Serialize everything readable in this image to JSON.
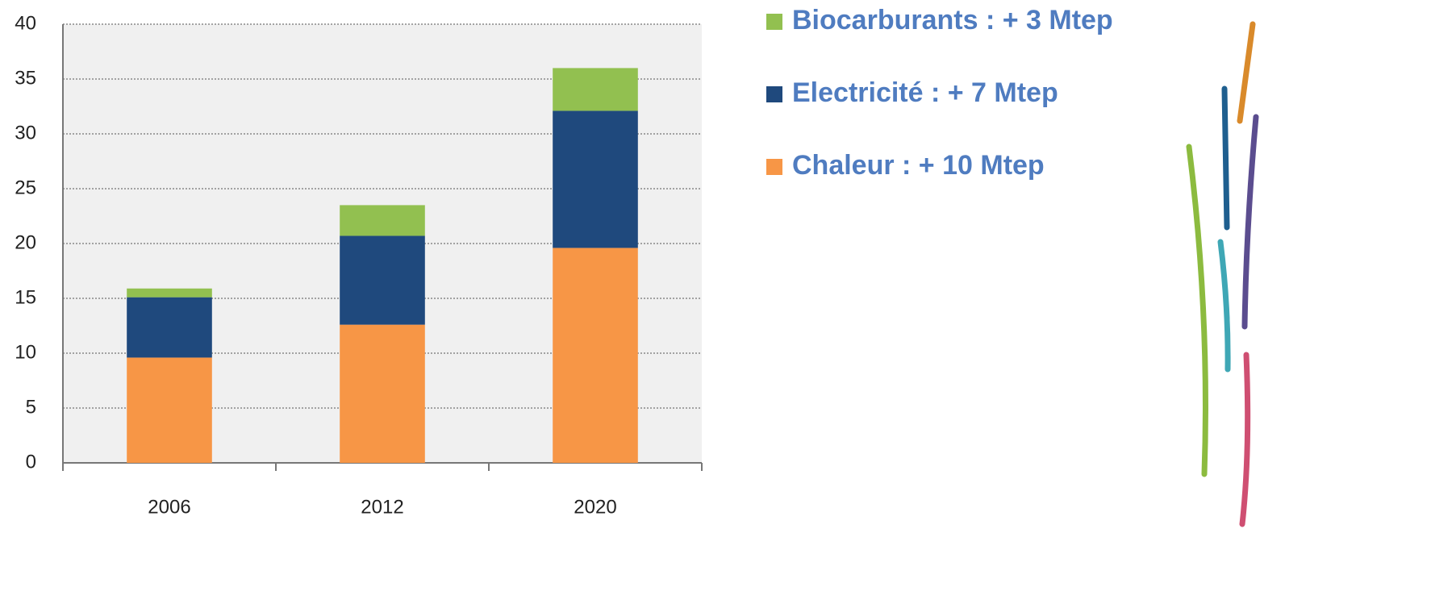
{
  "chart_data": {
    "type": "stacked-bar",
    "categories": [
      "2006",
      "2012",
      "2020"
    ],
    "series": [
      {
        "name": "Chaleur : + 10 Mtep",
        "color": "#f79646",
        "values": [
          9.6,
          12.6,
          19.6
        ]
      },
      {
        "name": "Electricité : + 7 Mtep",
        "color": "#1f497d",
        "values": [
          5.5,
          8.1,
          12.5
        ]
      },
      {
        "name": "Biocarburants : + 3 Mtep",
        "color": "#92c050",
        "values": [
          0.8,
          2.8,
          3.9
        ]
      }
    ],
    "ylim": [
      0,
      40
    ],
    "yticks": [
      0,
      5,
      10,
      15,
      20,
      25,
      30,
      35,
      40
    ],
    "grid": true,
    "legend": "right"
  }
}
